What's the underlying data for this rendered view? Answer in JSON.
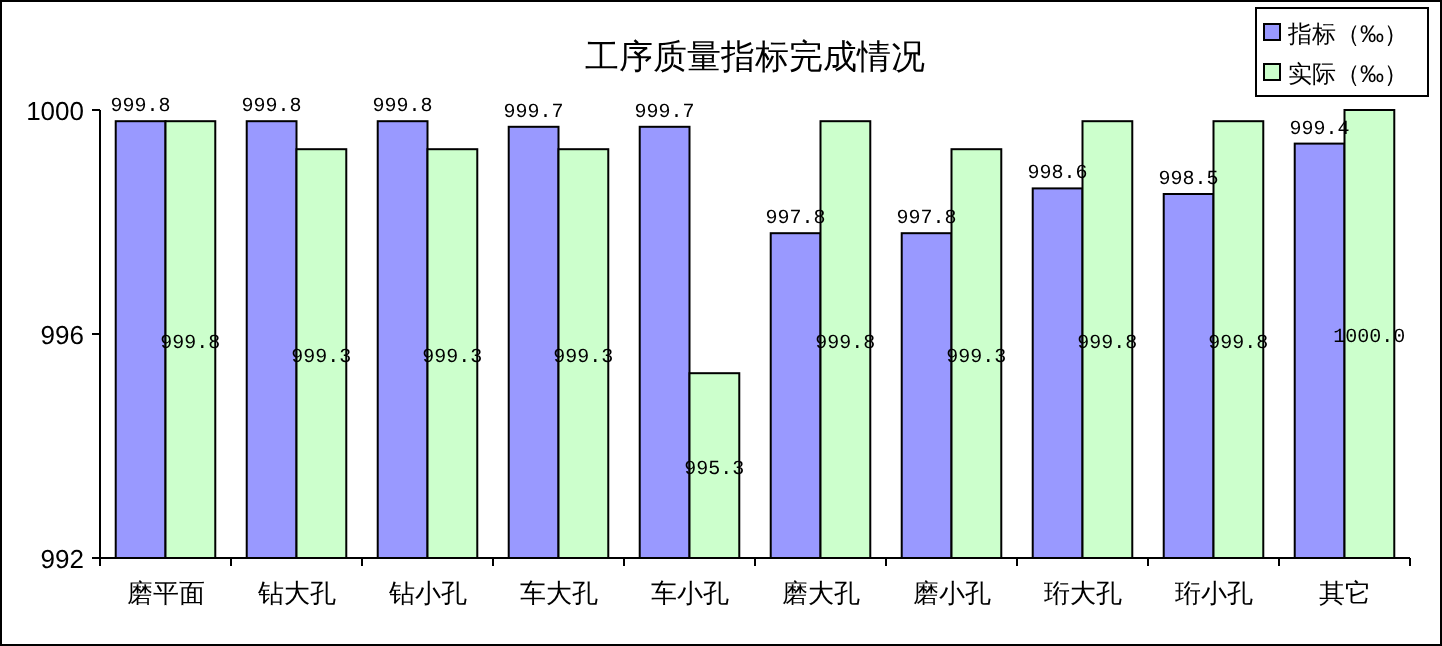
{
  "chart_data": {
    "type": "bar",
    "title": "工序质量指标完成情况",
    "categories": [
      "磨平面",
      "钻大孔",
      "钻小孔",
      "车大孔",
      "车小孔",
      "磨大孔",
      "磨小孔",
      "珩大孔",
      "珩小孔",
      "其它"
    ],
    "series": [
      {
        "name": "指标（‰）",
        "color": "#9999ff",
        "values": [
          999.8,
          999.8,
          999.8,
          999.7,
          999.7,
          997.8,
          997.8,
          998.6,
          998.5,
          999.4
        ],
        "value_labels": [
          "999.8",
          "999.8",
          "999.8",
          "999.7",
          "999.7",
          "997.8",
          "997.8",
          "998.6",
          "998.5",
          "999.4"
        ]
      },
      {
        "name": "实际（‰）",
        "color": "#ccffcc",
        "values": [
          999.8,
          999.3,
          999.3,
          999.3,
          995.3,
          999.8,
          999.3,
          999.8,
          999.8,
          1000.0
        ],
        "value_labels": [
          "999.8",
          "999.3",
          "999.3",
          "999.3",
          "995.3",
          "999.8",
          "999.3",
          "999.8",
          "999.8",
          "1000.0"
        ]
      }
    ],
    "ylim": [
      992,
      1000
    ],
    "yticks": [
      992,
      996,
      1000
    ],
    "legend": "top right"
  }
}
